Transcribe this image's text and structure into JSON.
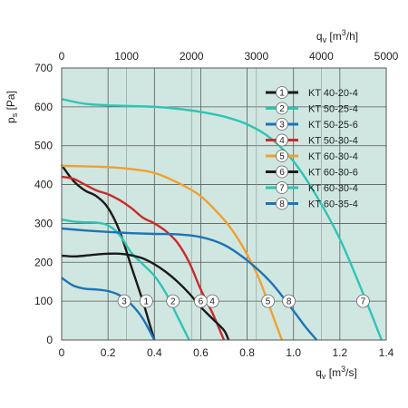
{
  "chart_data": {
    "type": "line",
    "bottom_axis": {
      "label_main": "q",
      "label_sub": "v",
      "label_unit_pre": "[m",
      "label_unit_sup": "3",
      "label_unit_post": "/s]",
      "range": [
        0,
        1.4
      ],
      "ticks": [
        "0",
        "0.2",
        "0.4",
        "0.6",
        "0.8",
        "1.0",
        "1.2",
        "1.4"
      ]
    },
    "top_axis": {
      "label_main": "q",
      "label_sub": "v",
      "label_unit_pre": "[m",
      "label_unit_sup": "3",
      "label_unit_post": "/h]",
      "range": [
        0,
        5000
      ],
      "ticks": [
        "0",
        "1000",
        "2000",
        "3000",
        "4000",
        "5000"
      ]
    },
    "left_axis": {
      "label_main": "p",
      "label_sub": "s",
      "label_unit": "[Pa]",
      "range": [
        0,
        700
      ],
      "ticks": [
        "0",
        "100",
        "200",
        "300",
        "400",
        "500",
        "600",
        "700"
      ]
    },
    "grid": true,
    "background": "#cfe7e0",
    "series": [
      {
        "id": "1",
        "name": "KT 40-20-4",
        "color": "#1a1a1a",
        "x": [
          0,
          0.05,
          0.1,
          0.15,
          0.2,
          0.25,
          0.3,
          0.35,
          0.38,
          0.4
        ],
        "y": [
          450,
          410,
          385,
          370,
          340,
          280,
          190,
          100,
          40,
          0
        ],
        "marker": {
          "x": 0.365,
          "y": 100
        }
      },
      {
        "id": "2",
        "name": "KT 50-25-4",
        "color": "#2ec4b6",
        "x": [
          0,
          0.05,
          0.1,
          0.15,
          0.2,
          0.25,
          0.3,
          0.35,
          0.4,
          0.45,
          0.5,
          0.55
        ],
        "y": [
          310,
          305,
          303,
          302,
          295,
          270,
          225,
          195,
          165,
          120,
          60,
          0
        ],
        "marker": {
          "x": 0.48,
          "y": 100
        }
      },
      {
        "id": "3",
        "name": "KT 50-25-6",
        "color": "#1f73b7",
        "x": [
          0,
          0.05,
          0.1,
          0.15,
          0.2,
          0.25,
          0.3,
          0.35,
          0.4
        ],
        "y": [
          160,
          140,
          132,
          130,
          126,
          115,
          92,
          55,
          0
        ],
        "marker": {
          "x": 0.27,
          "y": 100
        }
      },
      {
        "id": "4",
        "name": "KT 50-30-4",
        "color": "#cc2a2a",
        "x": [
          0,
          0.05,
          0.1,
          0.15,
          0.2,
          0.25,
          0.3,
          0.35,
          0.4,
          0.45,
          0.5,
          0.55,
          0.6,
          0.65,
          0.7
        ],
        "y": [
          420,
          415,
          400,
          385,
          375,
          360,
          340,
          315,
          300,
          280,
          250,
          200,
          130,
          70,
          0
        ],
        "marker": {
          "x": 0.65,
          "y": 100
        }
      },
      {
        "id": "5",
        "name": "KT 60-30-4",
        "color": "#f0a030",
        "x": [
          0,
          0.1,
          0.2,
          0.3,
          0.4,
          0.5,
          0.6,
          0.7,
          0.75,
          0.8,
          0.85,
          0.9,
          0.95
        ],
        "y": [
          448,
          447,
          445,
          440,
          430,
          405,
          370,
          310,
          270,
          220,
          160,
          80,
          0
        ],
        "marker": {
          "x": 0.89,
          "y": 100
        }
      },
      {
        "id": "6",
        "name": "KT 60-30-6",
        "color": "#1a1a1a",
        "x": [
          0,
          0.05,
          0.1,
          0.15,
          0.2,
          0.25,
          0.3,
          0.35,
          0.4,
          0.45,
          0.5,
          0.55,
          0.6,
          0.65,
          0.7,
          0.72
        ],
        "y": [
          217,
          215,
          217,
          220,
          222,
          222,
          218,
          210,
          195,
          175,
          150,
          120,
          85,
          55,
          25,
          0
        ],
        "marker": {
          "x": 0.6,
          "y": 100
        }
      },
      {
        "id": "7",
        "name": "KT 60-30-4",
        "color": "#2ec4b6",
        "x": [
          0,
          0.1,
          0.2,
          0.3,
          0.4,
          0.5,
          0.6,
          0.7,
          0.8,
          0.9,
          1.0,
          1.1,
          1.2,
          1.3,
          1.38
        ],
        "y": [
          620,
          608,
          604,
          602,
          600,
          595,
          587,
          575,
          555,
          520,
          460,
          370,
          260,
          120,
          0
        ],
        "marker": {
          "x": 1.3,
          "y": 100
        }
      },
      {
        "id": "8",
        "name": "KT 60-35-4",
        "color": "#1f73b7",
        "x": [
          0,
          0.1,
          0.2,
          0.3,
          0.4,
          0.5,
          0.6,
          0.7,
          0.8,
          0.9,
          1.0,
          1.05,
          1.1
        ],
        "y": [
          287,
          282,
          278,
          275,
          273,
          272,
          265,
          245,
          205,
          150,
          75,
          35,
          0
        ],
        "marker": {
          "x": 0.98,
          "y": 100
        }
      }
    ]
  }
}
